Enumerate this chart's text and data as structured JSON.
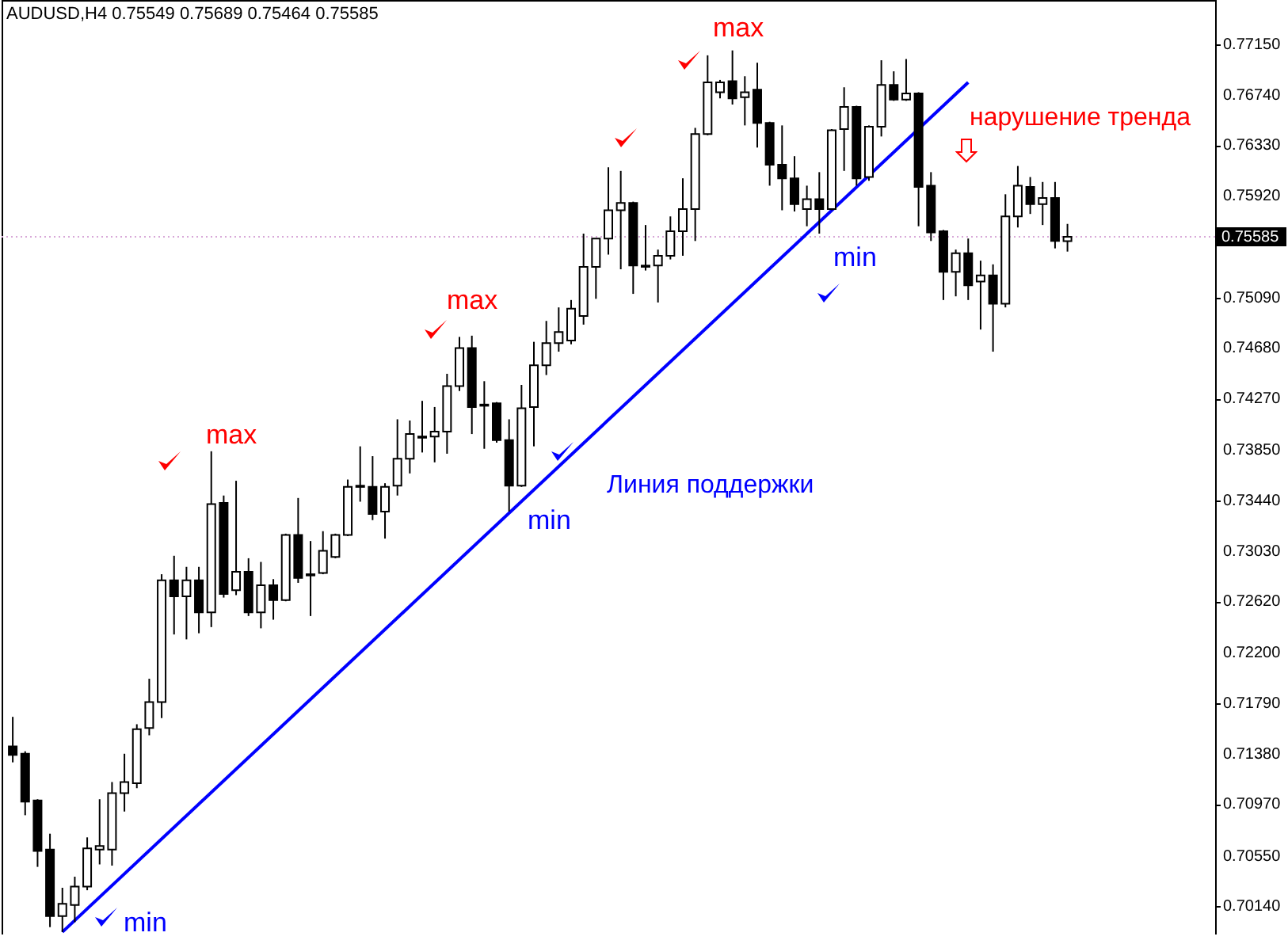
{
  "chart_data": {
    "type": "candlestick",
    "title": "AUDUSD,H4 0.75549 0.75689 0.75464 0.75585",
    "categories": [
      null,
      null,
      null,
      null,
      null,
      null,
      null,
      null,
      null,
      null,
      null,
      null,
      null,
      null,
      null,
      null,
      null,
      null,
      null,
      null,
      null,
      null,
      null,
      null,
      null,
      null,
      null,
      null,
      null,
      null,
      null,
      null,
      null,
      null,
      null,
      null,
      null,
      null,
      null,
      null,
      null,
      null,
      null,
      null,
      null,
      null,
      null,
      null,
      null,
      null,
      null,
      null,
      null,
      null,
      null,
      null,
      null,
      null,
      null,
      null,
      null,
      null,
      null,
      null,
      null,
      null,
      null,
      null,
      null,
      null,
      null,
      null,
      null,
      null,
      null,
      null,
      null,
      null,
      null,
      null,
      null,
      null,
      null,
      null,
      null,
      null,
      null,
      null,
      null,
      null,
      null,
      null,
      null,
      null,
      null,
      null,
      null
    ],
    "ohlc": [
      [
        0.7144,
        0.7168,
        0.7131,
        0.7137
      ],
      [
        0.7138,
        0.714,
        0.7088,
        0.7099
      ],
      [
        0.71,
        0.7101,
        0.7046,
        0.7059
      ],
      [
        0.706,
        0.7073,
        0.6997,
        0.7006
      ],
      [
        0.7006,
        0.7029,
        0.6993,
        0.7016
      ],
      [
        0.7015,
        0.7038,
        0.7001,
        0.703
      ],
      [
        0.703,
        0.707,
        0.7027,
        0.7061
      ],
      [
        0.706,
        0.7101,
        0.7048,
        0.7063
      ],
      [
        0.706,
        0.7115,
        0.7047,
        0.7106
      ],
      [
        0.7106,
        0.7138,
        0.7091,
        0.7115
      ],
      [
        0.7114,
        0.7162,
        0.711,
        0.7158
      ],
      [
        0.7159,
        0.7199,
        0.7153,
        0.718
      ],
      [
        0.718,
        0.7284,
        0.7167,
        0.7279
      ],
      [
        0.7279,
        0.7299,
        0.7235,
        0.7266
      ],
      [
        0.7266,
        0.729,
        0.7231,
        0.7279
      ],
      [
        0.7279,
        0.729,
        0.7236,
        0.7253
      ],
      [
        0.7253,
        0.7384,
        0.7241,
        0.7341
      ],
      [
        0.7342,
        0.7348,
        0.7265,
        0.7268
      ],
      [
        0.7271,
        0.736,
        0.7267,
        0.7286
      ],
      [
        0.7286,
        0.7297,
        0.725,
        0.7253
      ],
      [
        0.7253,
        0.7294,
        0.724,
        0.7275
      ],
      [
        0.7275,
        0.728,
        0.7247,
        0.7263
      ],
      [
        0.7263,
        0.7317,
        0.7262,
        0.7316
      ],
      [
        0.7316,
        0.7346,
        0.7277,
        0.7281
      ],
      [
        0.7284,
        0.7311,
        0.725,
        0.7283
      ],
      [
        0.7285,
        0.7319,
        0.7284,
        0.7303
      ],
      [
        0.7298,
        0.7317,
        0.7297,
        0.7316
      ],
      [
        0.7316,
        0.7361,
        0.7315,
        0.7355
      ],
      [
        0.7355,
        0.7388,
        0.7343,
        0.7356
      ],
      [
        0.7355,
        0.738,
        0.7328,
        0.7333
      ],
      [
        0.7335,
        0.7358,
        0.7313,
        0.7355
      ],
      [
        0.7356,
        0.741,
        0.7348,
        0.7378
      ],
      [
        0.7378,
        0.7409,
        0.7366,
        0.7398
      ],
      [
        0.7396,
        0.7425,
        0.7383,
        0.7395
      ],
      [
        0.7396,
        0.742,
        0.7375,
        0.74
      ],
      [
        0.74,
        0.7447,
        0.7382,
        0.7437
      ],
      [
        0.7437,
        0.7477,
        0.7433,
        0.7468
      ],
      [
        0.7468,
        0.7478,
        0.7398,
        0.742
      ],
      [
        0.7422,
        0.7441,
        0.7386,
        0.7421
      ],
      [
        0.7423,
        0.7424,
        0.7391,
        0.7393
      ],
      [
        0.7393,
        0.741,
        0.7335,
        0.7356
      ],
      [
        0.7356,
        0.7438,
        0.7355,
        0.7419
      ],
      [
        0.742,
        0.7473,
        0.7388,
        0.7454
      ],
      [
        0.7454,
        0.749,
        0.7446,
        0.7472
      ],
      [
        0.7472,
        0.7501,
        0.7465,
        0.7481
      ],
      [
        0.7474,
        0.7507,
        0.7471,
        0.75
      ],
      [
        0.7494,
        0.7561,
        0.7487,
        0.7534
      ],
      [
        0.7534,
        0.7557,
        0.7508,
        0.7557
      ],
      [
        0.7557,
        0.7615,
        0.7544,
        0.758
      ],
      [
        0.758,
        0.7612,
        0.7532,
        0.7586
      ],
      [
        0.7586,
        0.7587,
        0.7512,
        0.7535
      ],
      [
        0.7535,
        0.7568,
        0.7531,
        0.7534
      ],
      [
        0.7535,
        0.7548,
        0.7505,
        0.7543
      ],
      [
        0.7543,
        0.7575,
        0.754,
        0.7563
      ],
      [
        0.7563,
        0.7606,
        0.7543,
        0.7581
      ],
      [
        0.7581,
        0.7647,
        0.7555,
        0.7642
      ],
      [
        0.7642,
        0.7706,
        0.7641,
        0.7684
      ],
      [
        0.7676,
        0.7686,
        0.7671,
        0.7684
      ],
      [
        0.7685,
        0.771,
        0.7666,
        0.7671
      ],
      [
        0.7672,
        0.7689,
        0.7649,
        0.7676
      ],
      [
        0.7678,
        0.77,
        0.7631,
        0.7651
      ],
      [
        0.7651,
        0.7652,
        0.76,
        0.7617
      ],
      [
        0.7617,
        0.7649,
        0.758,
        0.7606
      ],
      [
        0.7606,
        0.7624,
        0.7579,
        0.7585
      ],
      [
        0.7581,
        0.76,
        0.7567,
        0.7589
      ],
      [
        0.7589,
        0.7611,
        0.7561,
        0.7581
      ],
      [
        0.7581,
        0.7646,
        0.758,
        0.7645
      ],
      [
        0.7646,
        0.768,
        0.7612,
        0.7664
      ],
      [
        0.7664,
        0.7665,
        0.76,
        0.7606
      ],
      [
        0.7607,
        0.7649,
        0.7604,
        0.7648
      ],
      [
        0.7648,
        0.7702,
        0.764,
        0.7682
      ],
      [
        0.7682,
        0.7693,
        0.7669,
        0.767
      ],
      [
        0.767,
        0.7703,
        0.7669,
        0.7675
      ],
      [
        0.7675,
        0.7676,
        0.7567,
        0.7599
      ],
      [
        0.76,
        0.7611,
        0.7555,
        0.7562
      ],
      [
        0.7563,
        0.7564,
        0.7507,
        0.753
      ],
      [
        0.753,
        0.7548,
        0.751,
        0.7545
      ],
      [
        0.7545,
        0.7557,
        0.7507,
        0.7519
      ],
      [
        0.7522,
        0.7539,
        0.7483,
        0.7527
      ],
      [
        0.7527,
        0.7536,
        0.7465,
        0.7504
      ],
      [
        0.7504,
        0.7593,
        0.7501,
        0.7575
      ],
      [
        0.7575,
        0.7616,
        0.7566,
        0.76
      ],
      [
        0.7599,
        0.7607,
        0.7577,
        0.7585
      ],
      [
        0.7585,
        0.7603,
        0.7568,
        0.759
      ],
      [
        0.759,
        0.7603,
        0.7549,
        0.7555
      ],
      [
        0.75549,
        0.75689,
        0.75464,
        0.75585
      ],
      null,
      null,
      null,
      null,
      null,
      null,
      null,
      null,
      null,
      null,
      null
    ],
    "series": [
      {
        "type": "line",
        "color": "#0000ff",
        "values": [
          null,
          null,
          null,
          null,
          0.6993,
          null,
          null,
          null,
          null,
          null,
          null,
          null,
          null,
          null,
          null,
          null,
          null,
          null,
          null,
          null,
          null,
          null,
          null,
          null,
          null,
          null,
          null,
          null,
          null,
          null,
          null,
          null,
          null,
          null,
          null,
          null,
          null,
          null,
          null,
          null,
          null,
          null,
          null,
          null,
          null,
          null,
          null,
          null,
          null,
          null,
          null,
          null,
          null,
          null,
          null,
          null,
          null,
          null,
          null,
          null,
          null,
          null,
          null,
          null,
          null,
          null,
          null,
          null,
          null,
          null,
          null,
          null,
          null,
          null,
          null,
          null,
          null,
          0.7684,
          null,
          null,
          null,
          null,
          null,
          null,
          null,
          null,
          null,
          null,
          null,
          null,
          null,
          null,
          null,
          null,
          null,
          null,
          null
        ]
      }
    ],
    "ylim": [
      0.6991,
      0.7751
    ],
    "yticks": [
      {
        "value": 0.7715,
        "label": "0.77150"
      },
      {
        "value": 0.7674,
        "label": "0.76740"
      },
      {
        "value": 0.7633,
        "label": "0.76330"
      },
      {
        "value": 0.7592,
        "label": "0.75920"
      },
      {
        "value": 0.7509,
        "label": "0.75090"
      },
      {
        "value": 0.7468,
        "label": "0.74680"
      },
      {
        "value": 0.7427,
        "label": "0.74270"
      },
      {
        "value": 0.7385,
        "label": "0.73850"
      },
      {
        "value": 0.7344,
        "label": "0.73440"
      },
      {
        "value": 0.7303,
        "label": "0.73030"
      },
      {
        "value": 0.7262,
        "label": "0.72620"
      },
      {
        "value": 0.722,
        "label": "0.72200"
      },
      {
        "value": 0.7179,
        "label": "0.71790"
      },
      {
        "value": 0.7138,
        "label": "0.71380"
      },
      {
        "value": 0.7097,
        "label": "0.70970"
      },
      {
        "value": 0.7055,
        "label": "0.70550"
      },
      {
        "value": 0.7014,
        "label": "0.70140"
      }
    ],
    "tick_labels": "y",
    "ref_lines": [
      {
        "axis": "y",
        "value": 0.75585,
        "label": "0.75585",
        "color": "#d8a8d8",
        "line_style": "dotted"
      }
    ],
    "annotations": [
      "max",
      "max",
      "max",
      "min",
      "min",
      "min",
      "Линия поддержки",
      "нарушение тренда"
    ],
    "grid": false
  }
}
